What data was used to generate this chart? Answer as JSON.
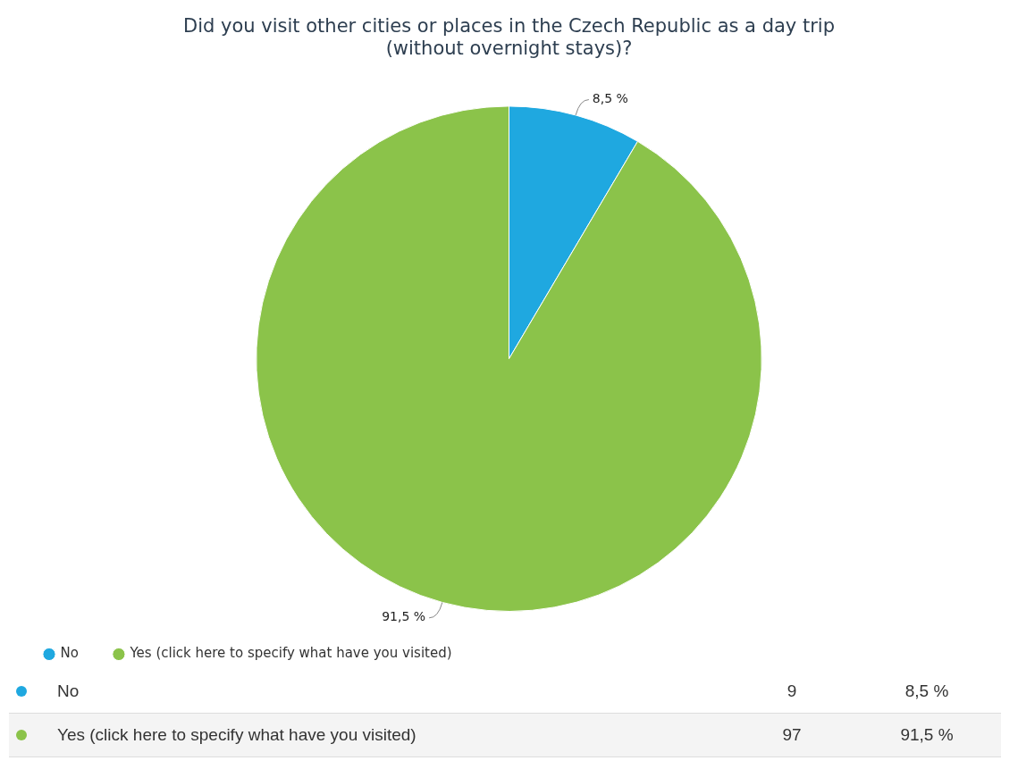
{
  "chart_data": {
    "type": "pie",
    "title": "Did you visit other cities or places in the Czech Republic as a day trip (without overnight stays)?",
    "categories": [
      "No",
      "Yes (click here to specify what have you visited)"
    ],
    "values": [
      8.5,
      91.5
    ],
    "annotations": [
      "9",
      "97"
    ],
    "colors": [
      "#1fa8e0",
      "#8bc34a"
    ],
    "value_labels": [
      "8,5 %",
      "91,5 %"
    ],
    "legend": "bottom left"
  }
}
